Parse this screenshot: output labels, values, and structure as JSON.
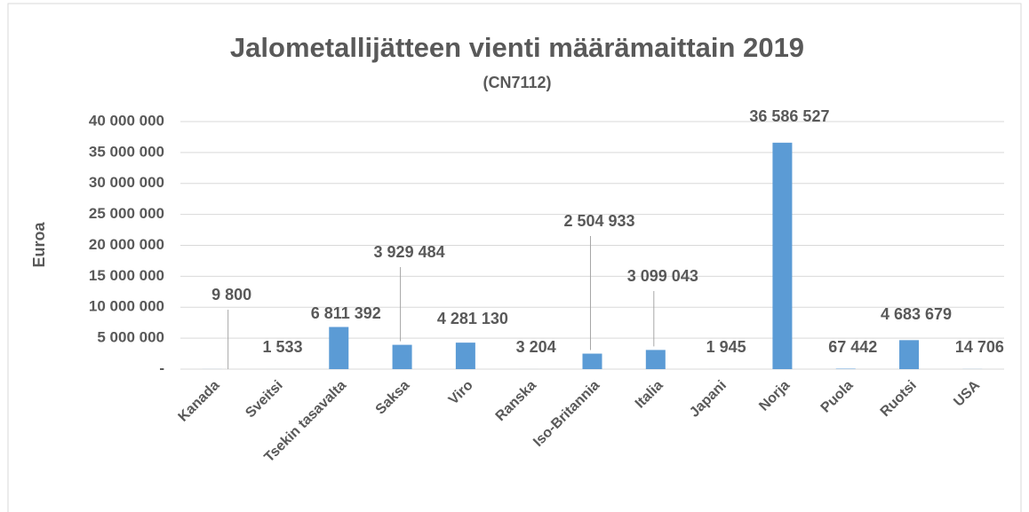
{
  "chart_data": {
    "type": "bar",
    "title": "Jalometallijätteen vienti määrämaittain 2019",
    "subtitle": "(CN7112)",
    "y_label": "Euroa",
    "categories": [
      "Kanada",
      "Sveitsi",
      "Tsekin tasavalta",
      "Saksa",
      "Viro",
      "Ranska",
      "Iso-Britannia",
      "Italia",
      "Japani",
      "Norja",
      "Puola",
      "Ruotsi",
      "USA"
    ],
    "values": [
      9800,
      1533,
      6811392,
      3929484,
      4281130,
      3204,
      2504933,
      3099043,
      1945,
      36586527,
      67442,
      4683679,
      14706
    ],
    "value_labels": [
      "9 800",
      "1 533",
      "6 811 392",
      "3 929 484",
      "4 281 130",
      "3 204",
      "2 504 933",
      "3 099 043",
      "1 945",
      "36 586 527",
      "67 442",
      "4 683 679",
      "14 706"
    ],
    "color": "#5b9bd5",
    "ylim": [
      0,
      40000000
    ],
    "yticks": [
      {
        "value": 0,
        "label": "-"
      },
      {
        "value": 5000000,
        "label": "5 000 000"
      },
      {
        "value": 10000000,
        "label": "10 000 000"
      },
      {
        "value": 15000000,
        "label": "15 000 000"
      },
      {
        "value": 20000000,
        "label": "20 000 000"
      },
      {
        "value": 25000000,
        "label": "25 000 000"
      },
      {
        "value": 30000000,
        "label": "30 000 000"
      },
      {
        "value": 35000000,
        "label": "35 000 000"
      },
      {
        "value": 40000000,
        "label": "40 000 000"
      }
    ],
    "grid": true
  }
}
